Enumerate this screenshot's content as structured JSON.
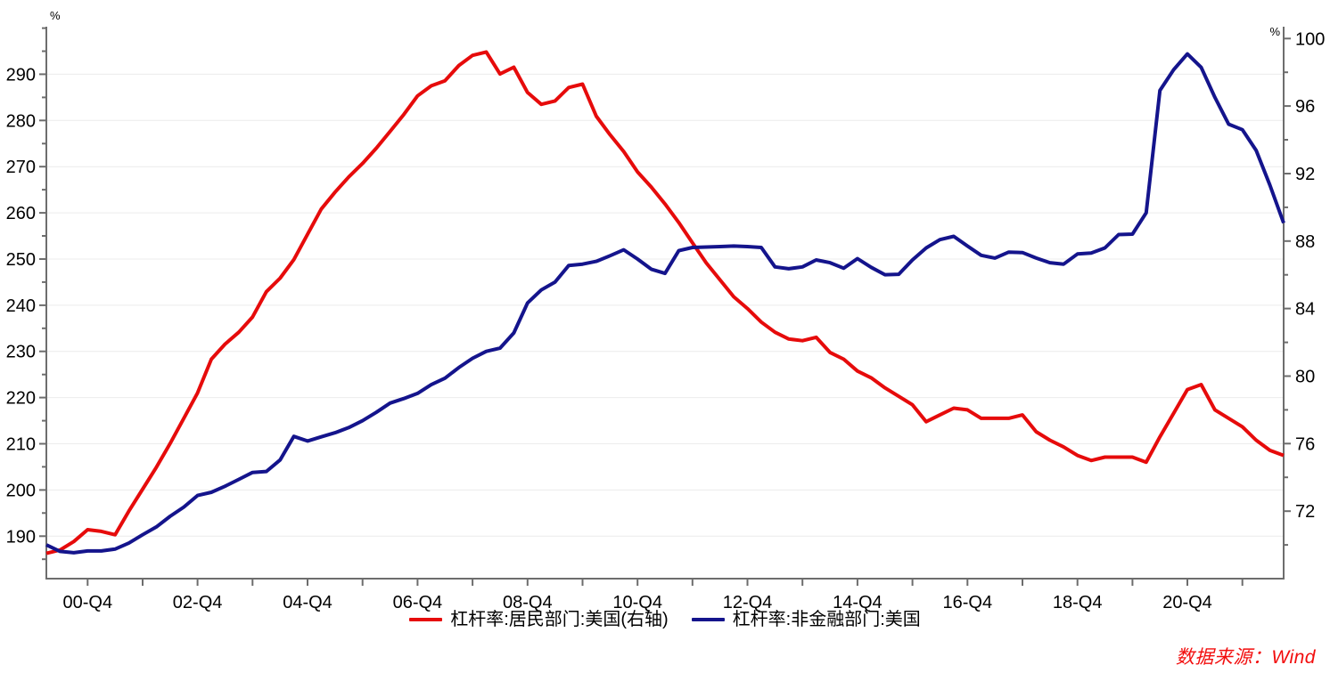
{
  "chart_data": {
    "type": "line",
    "title": "",
    "x_quarters": [
      "2000Q1",
      "2000Q2",
      "2000Q3",
      "2000Q4",
      "2001Q1",
      "2001Q2",
      "2001Q3",
      "2001Q4",
      "2002Q1",
      "2002Q2",
      "2002Q3",
      "2002Q4",
      "2003Q1",
      "2003Q2",
      "2003Q3",
      "2003Q4",
      "2004Q1",
      "2004Q2",
      "2004Q3",
      "2004Q4",
      "2005Q1",
      "2005Q2",
      "2005Q3",
      "2005Q4",
      "2006Q1",
      "2006Q2",
      "2006Q3",
      "2006Q4",
      "2007Q1",
      "2007Q2",
      "2007Q3",
      "2007Q4",
      "2008Q1",
      "2008Q2",
      "2008Q3",
      "2008Q4",
      "2009Q1",
      "2009Q2",
      "2009Q3",
      "2009Q4",
      "2010Q1",
      "2010Q2",
      "2010Q3",
      "2010Q4",
      "2011Q1",
      "2011Q2",
      "2011Q3",
      "2011Q4",
      "2012Q1",
      "2012Q2",
      "2012Q3",
      "2012Q4",
      "2013Q1",
      "2013Q2",
      "2013Q3",
      "2013Q4",
      "2014Q1",
      "2014Q2",
      "2014Q3",
      "2014Q4",
      "2015Q1",
      "2015Q2",
      "2015Q3",
      "2015Q4",
      "2016Q1",
      "2016Q2",
      "2016Q3",
      "2016Q4",
      "2017Q1",
      "2017Q2",
      "2017Q3",
      "2017Q4",
      "2018Q1",
      "2018Q2",
      "2018Q3",
      "2018Q4",
      "2019Q1",
      "2019Q2",
      "2019Q3",
      "2019Q4",
      "2020Q1",
      "2020Q2",
      "2020Q3",
      "2020Q4",
      "2021Q1",
      "2021Q2",
      "2021Q3",
      "2021Q4",
      "2022Q1",
      "2022Q2",
      "2022Q3"
    ],
    "x_tick_labels": [
      "00-Q4",
      "02-Q4",
      "04-Q4",
      "06-Q4",
      "08-Q4",
      "10-Q4",
      "12-Q4",
      "14-Q4",
      "16-Q4",
      "18-Q4",
      "20-Q4"
    ],
    "series": [
      {
        "name": "杠杆率:居民部门:美国(右轴)",
        "axis": "right",
        "color": "#e60b0b",
        "values": [
          69.5,
          69.7,
          70.2,
          70.9,
          70.8,
          70.6,
          72.0,
          73.3,
          74.6,
          76.0,
          77.5,
          79.0,
          81.0,
          81.9,
          82.6,
          83.5,
          85.0,
          85.8,
          86.9,
          88.4,
          89.9,
          90.9,
          91.8,
          92.6,
          93.5,
          94.5,
          95.5,
          96.6,
          97.2,
          97.5,
          98.4,
          99.0,
          99.2,
          97.9,
          98.3,
          96.8,
          96.1,
          96.3,
          97.1,
          97.3,
          95.4,
          94.3,
          93.3,
          92.1,
          91.2,
          90.2,
          89.1,
          87.9,
          86.7,
          85.7,
          84.7,
          84.0,
          83.2,
          82.6,
          82.2,
          82.1,
          82.3,
          81.4,
          81.0,
          80.3,
          79.9,
          79.3,
          78.8,
          78.3,
          77.3,
          77.7,
          78.1,
          78.0,
          77.5,
          77.5,
          77.5,
          77.7,
          76.7,
          76.2,
          75.8,
          75.3,
          75.0,
          75.2,
          75.2,
          75.2,
          74.9,
          76.4,
          77.8,
          79.2,
          79.5,
          78.0,
          77.5,
          77.0,
          76.2,
          75.6,
          75.3
        ]
      },
      {
        "name": "杠杆率:非金融部门:美国",
        "axis": "left",
        "color": "#14148c",
        "values": [
          188.1,
          186.7,
          186.4,
          186.8,
          186.8,
          187.2,
          188.5,
          190.3,
          192.0,
          194.3,
          196.3,
          198.8,
          199.5,
          200.8,
          202.3,
          203.8,
          204.0,
          206.5,
          211.6,
          210.6,
          211.5,
          212.4,
          213.5,
          215.0,
          216.8,
          218.8,
          219.8,
          220.9,
          222.8,
          224.2,
          226.5,
          228.5,
          230.0,
          230.7,
          234.0,
          240.5,
          243.3,
          245.0,
          248.6,
          248.9,
          249.5,
          250.7,
          252.0,
          250.0,
          247.8,
          246.9,
          251.8,
          252.5,
          252.6,
          252.7,
          252.8,
          252.7,
          252.5,
          248.3,
          247.9,
          248.3,
          249.8,
          249.2,
          248.0,
          250.1,
          248.2,
          246.6,
          246.7,
          249.8,
          252.4,
          254.2,
          254.9,
          252.8,
          250.8,
          250.2,
          251.5,
          251.4,
          250.2,
          249.2,
          248.9,
          251.1,
          251.3,
          252.4,
          255.3,
          255.4,
          260.0,
          286.5,
          291.0,
          294.4,
          291.5,
          285.0,
          279.2,
          278.0,
          273.5,
          266.0,
          257.8
        ]
      }
    ],
    "left_axis": {
      "unit": "%",
      "min": 180.8,
      "max": 300.3,
      "label_start": 190,
      "label_end": 290,
      "label_step": 10,
      "minor_step": 5
    },
    "right_axis": {
      "unit": "%",
      "min": 68.0,
      "max": 100.7,
      "label_start": 72,
      "label_end": 100,
      "label_step": 4,
      "minor_step": 2
    },
    "grid": "horizontal-only",
    "legend_position": "bottom-center"
  },
  "colors": {
    "axis": "#6d6d6d",
    "gridline": "#ececec",
    "tick_label": "#000000",
    "source_note": "#f20d0d"
  },
  "source": {
    "text": "数据来源：Wind"
  }
}
